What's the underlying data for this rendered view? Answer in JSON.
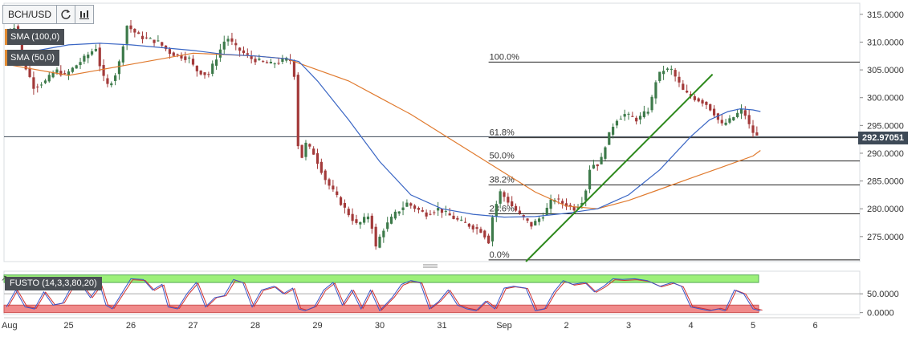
{
  "toolbar": {
    "symbol": "BCH/USD",
    "refresh_icon": "refresh-icon",
    "chart_type_icon": "candles-icon"
  },
  "indicators": {
    "sma100": "SMA (100,0)",
    "sma50": "SMA (50,0)",
    "fusto": "FUSTO (14,3,3,80,20)"
  },
  "current_price": "292.97051",
  "colors": {
    "bull": "#3d7a4a",
    "bear": "#a33a3a",
    "sma100": "#e07a2e",
    "sma50": "#3a66c4",
    "trendline": "#2f8a1e",
    "overbought": "#9cf07a",
    "oversold": "#f08a8a",
    "stoch_k": "#3a55c8",
    "stoch_d": "#d03030"
  },
  "chart_data": [
    {
      "type": "candlestick",
      "title": "",
      "x_tick_labels": [
        "Aug",
        "25",
        "26",
        "27",
        "28",
        "29",
        "30",
        "31",
        "Sep",
        "2",
        "3",
        "4",
        "5",
        "6"
      ],
      "y_tick_labels": [
        "275.0000",
        "280.0000",
        "285.0000",
        "290.0000",
        "295.0000",
        "300.0000",
        "305.0000",
        "310.0000",
        "315.0000"
      ],
      "ylim": [
        270.5,
        317
      ],
      "grid": false,
      "price_path": [
        [
          0,
          311
        ],
        [
          0.2,
          313
        ],
        [
          0.35,
          306
        ],
        [
          0.5,
          302
        ],
        [
          0.7,
          303
        ],
        [
          0.85,
          305
        ],
        [
          1.0,
          304
        ],
        [
          1.2,
          306
        ],
        [
          1.5,
          309
        ],
        [
          1.6,
          304
        ],
        [
          1.7,
          302
        ],
        [
          1.85,
          305
        ],
        [
          2.0,
          313
        ],
        [
          2.2,
          311
        ],
        [
          2.5,
          310
        ],
        [
          2.7,
          308
        ],
        [
          3.0,
          307
        ],
        [
          3.1,
          305
        ],
        [
          3.3,
          304
        ],
        [
          3.6,
          311
        ],
        [
          3.75,
          309
        ],
        [
          4.0,
          307
        ],
        [
          4.3,
          306
        ],
        [
          4.6,
          307
        ],
        [
          4.68,
          306
        ],
        [
          4.72,
          296
        ],
        [
          4.78,
          287
        ],
        [
          4.85,
          292
        ],
        [
          5.0,
          290
        ],
        [
          5.2,
          285
        ],
        [
          5.5,
          280
        ],
        [
          5.7,
          277
        ],
        [
          5.9,
          279
        ],
        [
          6.0,
          273
        ],
        [
          6.1,
          276
        ],
        [
          6.3,
          279
        ],
        [
          6.5,
          281
        ],
        [
          6.8,
          279
        ],
        [
          7.0,
          280
        ],
        [
          7.3,
          278
        ],
        [
          7.5,
          277
        ],
        [
          7.7,
          276
        ],
        [
          7.82,
          274
        ],
        [
          7.88,
          279
        ],
        [
          8.0,
          283
        ],
        [
          8.15,
          281
        ],
        [
          8.3,
          279
        ],
        [
          8.5,
          277
        ],
        [
          8.7,
          279
        ],
        [
          8.85,
          282
        ],
        [
          9.0,
          281
        ],
        [
          9.2,
          280
        ],
        [
          9.35,
          282
        ],
        [
          9.45,
          288
        ],
        [
          9.6,
          288
        ],
        [
          9.7,
          292
        ],
        [
          9.85,
          296
        ],
        [
          10.0,
          297
        ],
        [
          10.2,
          296
        ],
        [
          10.4,
          298
        ],
        [
          10.5,
          303
        ],
        [
          10.6,
          305
        ],
        [
          10.75,
          305
        ],
        [
          10.95,
          301
        ],
        [
          11.1,
          300
        ],
        [
          11.3,
          299
        ],
        [
          11.45,
          297
        ],
        [
          11.55,
          295
        ],
        [
          11.7,
          296
        ],
        [
          11.8,
          297
        ],
        [
          11.9,
          298
        ],
        [
          12.0,
          295
        ],
        [
          12.1,
          293
        ],
        [
          12.12,
          293
        ]
      ],
      "series": [
        {
          "name": "SMA (100,0)",
          "x": [
            0,
            1,
            2,
            3,
            4,
            4.5,
            5,
            5.5,
            6,
            6.5,
            7,
            7.5,
            8,
            8.5,
            9,
            9.5,
            10,
            10.5,
            11,
            11.5,
            12,
            12.12
          ],
          "values": [
            306,
            304,
            306,
            308,
            307.5,
            307,
            305,
            303,
            300,
            297,
            293.5,
            290,
            286.5,
            283,
            280.5,
            280,
            281.5,
            283.5,
            285.5,
            287.5,
            289.5,
            290.5
          ]
        },
        {
          "name": "SMA (50,0)",
          "x": [
            0,
            0.5,
            1,
            1.5,
            2,
            3,
            3.5,
            4,
            4.5,
            4.7,
            5,
            5.5,
            6,
            6.5,
            7,
            7.5,
            8,
            8.5,
            9,
            9.5,
            10,
            10.5,
            11,
            11.3,
            11.6,
            11.8,
            12,
            12.12
          ],
          "values": [
            308,
            308.5,
            309.5,
            309.8,
            309.5,
            308.5,
            307.8,
            307.5,
            307,
            306.5,
            303,
            296,
            288.5,
            282.5,
            280,
            279,
            278.5,
            278.6,
            279.2,
            280,
            282.5,
            287,
            293,
            296,
            297.5,
            298,
            297.8,
            297.5
          ]
        }
      ],
      "fibonacci": [
        {
          "label": "100.0%",
          "value": 306.4
        },
        {
          "label": "61.8%",
          "value": 292.8
        },
        {
          "label": "50.0%",
          "value": 288.6
        },
        {
          "label": "38.2%",
          "value": 284.3
        },
        {
          "label": "23.6%",
          "value": 279.1
        },
        {
          "label": "0.0%",
          "value": 270.8
        }
      ],
      "trendline": {
        "x": [
          8.35,
          11.35
        ],
        "y": [
          270.5,
          304.2
        ]
      },
      "current_price": 292.97051
    },
    {
      "type": "line",
      "title": "",
      "y_tick_labels": [
        "0.0000",
        "50.0000"
      ],
      "ylim": [
        -5,
        110
      ],
      "bands": {
        "overbought": [
          80,
          100
        ],
        "oversold": [
          0,
          20
        ]
      },
      "stoch_path": [
        [
          0,
          15
        ],
        [
          0.15,
          60
        ],
        [
          0.3,
          15
        ],
        [
          0.45,
          10
        ],
        [
          0.6,
          55
        ],
        [
          0.75,
          20
        ],
        [
          0.9,
          25
        ],
        [
          1.05,
          70
        ],
        [
          1.2,
          75
        ],
        [
          1.35,
          40
        ],
        [
          1.5,
          75
        ],
        [
          1.6,
          20
        ],
        [
          1.7,
          10
        ],
        [
          1.85,
          50
        ],
        [
          2.0,
          90
        ],
        [
          2.2,
          88
        ],
        [
          2.35,
          60
        ],
        [
          2.5,
          75
        ],
        [
          2.6,
          15
        ],
        [
          2.75,
          10
        ],
        [
          2.9,
          50
        ],
        [
          3.05,
          80
        ],
        [
          3.2,
          15
        ],
        [
          3.35,
          40
        ],
        [
          3.5,
          45
        ],
        [
          3.65,
          88
        ],
        [
          3.8,
          80
        ],
        [
          3.95,
          15
        ],
        [
          4.1,
          60
        ],
        [
          4.3,
          70
        ],
        [
          4.45,
          50
        ],
        [
          4.6,
          65
        ],
        [
          4.7,
          10
        ],
        [
          4.8,
          5
        ],
        [
          4.95,
          15
        ],
        [
          5.1,
          60
        ],
        [
          5.25,
          80
        ],
        [
          5.4,
          20
        ],
        [
          5.55,
          60
        ],
        [
          5.7,
          10
        ],
        [
          5.85,
          60
        ],
        [
          6.0,
          5
        ],
        [
          6.2,
          40
        ],
        [
          6.35,
          75
        ],
        [
          6.5,
          85
        ],
        [
          6.65,
          80
        ],
        [
          6.8,
          10
        ],
        [
          6.95,
          30
        ],
        [
          7.1,
          60
        ],
        [
          7.25,
          20
        ],
        [
          7.4,
          10
        ],
        [
          7.55,
          5
        ],
        [
          7.7,
          30
        ],
        [
          7.85,
          10
        ],
        [
          8.0,
          65
        ],
        [
          8.15,
          70
        ],
        [
          8.35,
          65
        ],
        [
          8.5,
          5
        ],
        [
          8.65,
          10
        ],
        [
          8.8,
          55
        ],
        [
          8.95,
          85
        ],
        [
          9.1,
          75
        ],
        [
          9.3,
          80
        ],
        [
          9.45,
          55
        ],
        [
          9.6,
          70
        ],
        [
          9.75,
          90
        ],
        [
          9.9,
          88
        ],
        [
          10.1,
          90
        ],
        [
          10.3,
          85
        ],
        [
          10.5,
          70
        ],
        [
          10.7,
          80
        ],
        [
          10.85,
          70
        ],
        [
          11.0,
          15
        ],
        [
          11.15,
          10
        ],
        [
          11.3,
          5
        ],
        [
          11.45,
          10
        ],
        [
          11.55,
          5
        ],
        [
          11.7,
          60
        ],
        [
          11.85,
          50
        ],
        [
          12.0,
          10
        ],
        [
          12.12,
          5
        ]
      ]
    }
  ]
}
